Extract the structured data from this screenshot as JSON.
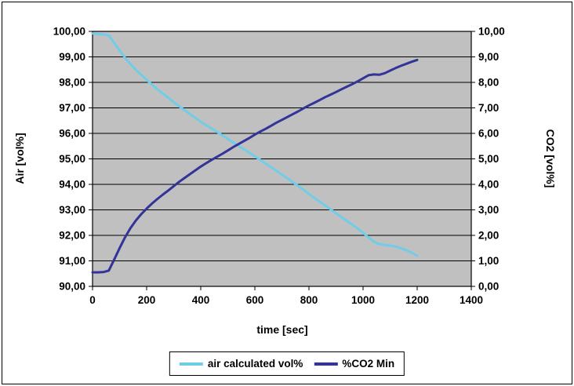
{
  "chart_data": {
    "type": "line",
    "title": "",
    "xlabel": "time [sec]",
    "ylabel_left": "Air [vol%]",
    "ylabel_right": "CO2 [vol%]",
    "x_range": [
      0,
      1400
    ],
    "y_left_range": [
      90,
      100
    ],
    "y_right_range": [
      0,
      10
    ],
    "x_ticks": [
      "0",
      "200",
      "400",
      "600",
      "800",
      "1000",
      "1200",
      "1400"
    ],
    "y_left_ticks": [
      "100,00",
      "99,00",
      "98,00",
      "97,00",
      "96,00",
      "95,00",
      "94,00",
      "93,00",
      "92,00",
      "91,00",
      "90,00"
    ],
    "y_right_ticks": [
      "10,00",
      "9,00",
      "8,00",
      "7,00",
      "6,00",
      "5,00",
      "4,00",
      "3,00",
      "2,00",
      "1,00",
      "0,00"
    ],
    "grid": "horizontal",
    "legend_position": "bottom",
    "plot_bg": "#C0C0C0",
    "x": [
      0,
      20,
      40,
      60,
      80,
      100,
      120,
      140,
      160,
      180,
      200,
      220,
      240,
      260,
      280,
      300,
      320,
      340,
      360,
      380,
      400,
      420,
      440,
      460,
      480,
      500,
      520,
      540,
      560,
      580,
      600,
      620,
      640,
      660,
      680,
      700,
      720,
      740,
      760,
      780,
      800,
      820,
      840,
      860,
      880,
      900,
      920,
      940,
      960,
      980,
      1000,
      1020,
      1040,
      1060,
      1080,
      1100,
      1120,
      1140,
      1160,
      1180,
      1200
    ],
    "series": [
      {
        "name": "air calculated vol%",
        "axis": "left",
        "color": "#70CDE8",
        "values": [
          99.92,
          99.9,
          99.88,
          99.84,
          99.55,
          99.25,
          98.97,
          98.72,
          98.5,
          98.3,
          98.1,
          97.91,
          97.73,
          97.56,
          97.4,
          97.22,
          97.06,
          96.91,
          96.76,
          96.61,
          96.46,
          96.32,
          96.19,
          96.06,
          95.92,
          95.78,
          95.64,
          95.51,
          95.38,
          95.24,
          95.1,
          94.96,
          94.82,
          94.67,
          94.53,
          94.38,
          94.24,
          94.09,
          93.94,
          93.79,
          93.62,
          93.47,
          93.32,
          93.17,
          93.02,
          92.87,
          92.72,
          92.57,
          92.42,
          92.27,
          92.1,
          91.92,
          91.75,
          91.66,
          91.62,
          91.6,
          91.56,
          91.5,
          91.42,
          91.32,
          91.2
        ]
      },
      {
        "name": "%CO2 Min",
        "axis": "right",
        "color": "#333399",
        "values": [
          0.55,
          0.55,
          0.56,
          0.62,
          1.05,
          1.5,
          1.92,
          2.28,
          2.58,
          2.83,
          3.05,
          3.25,
          3.43,
          3.6,
          3.76,
          3.93,
          4.1,
          4.25,
          4.4,
          4.55,
          4.7,
          4.83,
          4.96,
          5.08,
          5.2,
          5.33,
          5.46,
          5.58,
          5.7,
          5.82,
          5.95,
          6.07,
          6.18,
          6.3,
          6.42,
          6.53,
          6.64,
          6.75,
          6.86,
          6.98,
          7.1,
          7.2,
          7.31,
          7.42,
          7.52,
          7.62,
          7.73,
          7.83,
          7.93,
          8.04,
          8.16,
          8.28,
          8.31,
          8.3,
          8.36,
          8.46,
          8.56,
          8.65,
          8.73,
          8.81,
          8.88
        ]
      }
    ]
  }
}
